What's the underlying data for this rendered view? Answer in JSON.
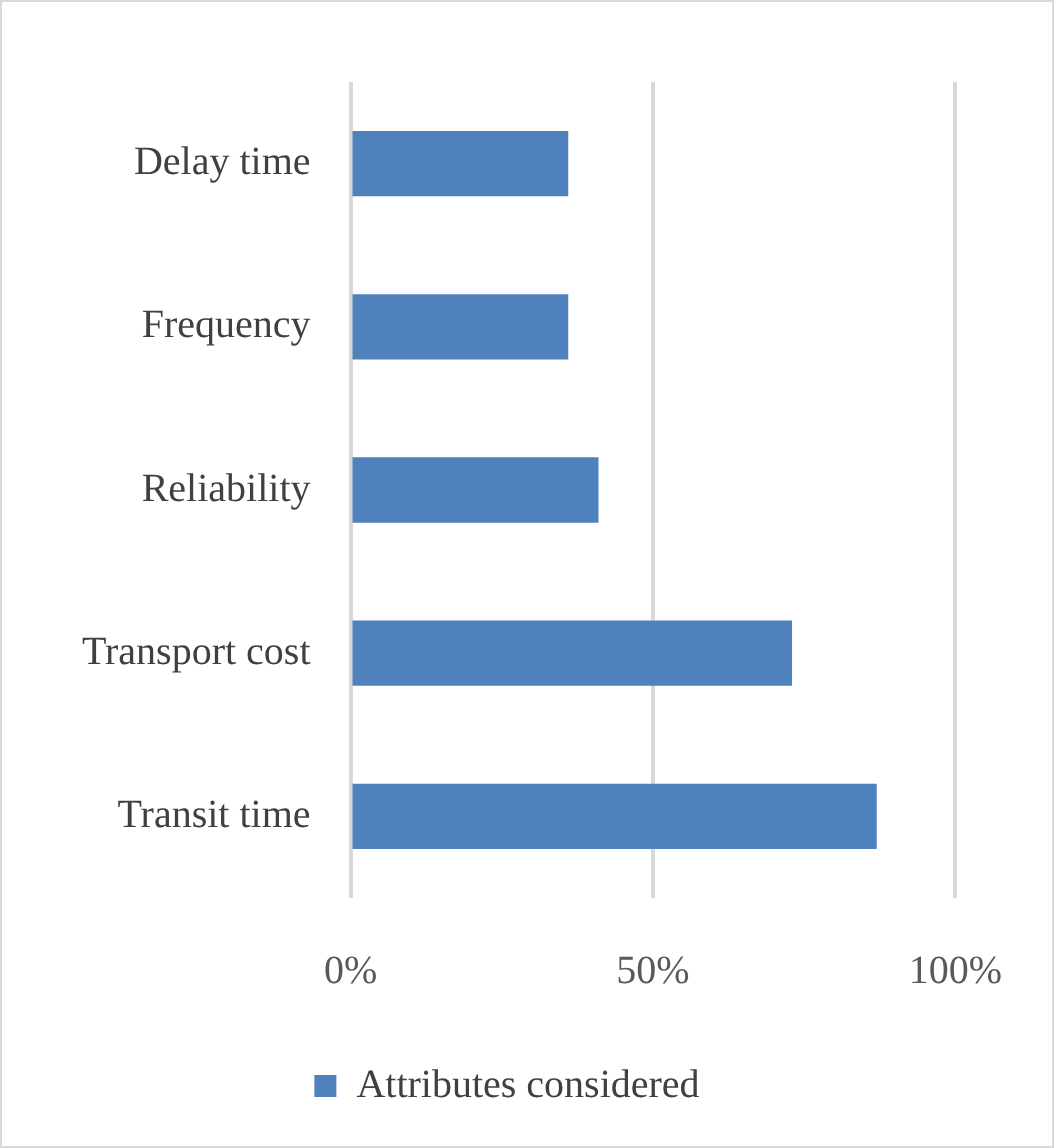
{
  "chart_data": {
    "type": "bar",
    "orientation": "horizontal",
    "categories": [
      "Delay time",
      "Frequency",
      "Reliability",
      "Transport cost",
      "Transit time"
    ],
    "series": [
      {
        "name": "Attributes considered",
        "color": "#4f81bd",
        "values": [
          36,
          36,
          41,
          73,
          87
        ]
      }
    ],
    "xlim": [
      0,
      100
    ],
    "xticks": [
      {
        "value": 0,
        "label": "0%"
      },
      {
        "value": 50,
        "label": "50%"
      },
      {
        "value": 100,
        "label": "100%"
      }
    ],
    "grid": "x",
    "legend": "bottom"
  }
}
